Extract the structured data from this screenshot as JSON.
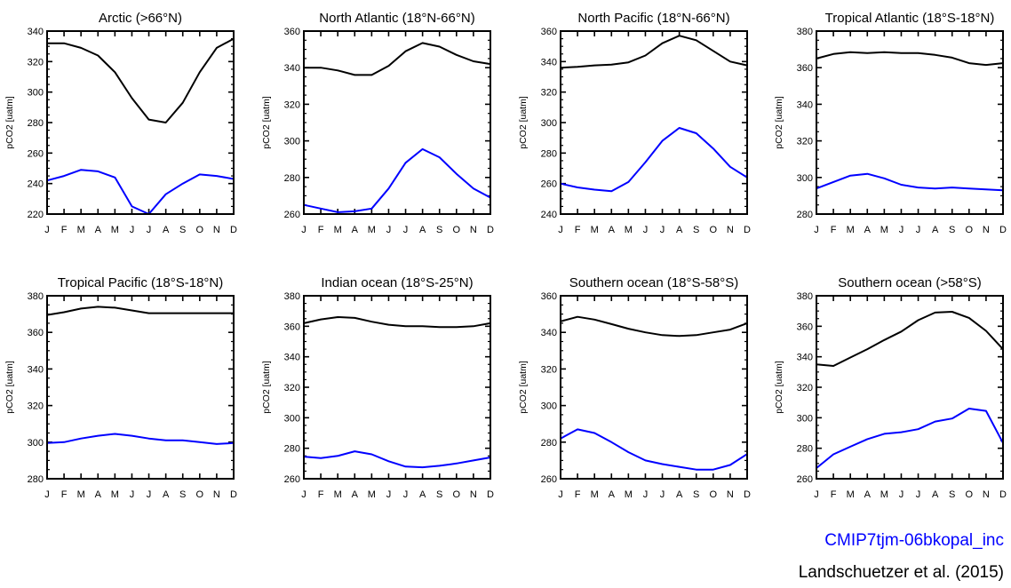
{
  "months": [
    "J",
    "F",
    "M",
    "A",
    "M",
    "J",
    "J",
    "A",
    "S",
    "O",
    "N",
    "D"
  ],
  "legend": {
    "model": {
      "label": "CMIP7tjm-06bkopal_inc",
      "color": "#0000ff"
    },
    "obs": {
      "label": "Landschuetzer et al. (2015)",
      "color": "#000000"
    }
  },
  "chart_data": [
    {
      "type": "line",
      "title": "Arctic (>66°N)",
      "ylabel": "pCO2 [uatm]",
      "ylim": [
        220,
        340
      ],
      "yticks": [
        220,
        240,
        260,
        280,
        300,
        320,
        340
      ],
      "categories": [
        "J",
        "F",
        "M",
        "A",
        "M",
        "J",
        "J",
        "A",
        "S",
        "O",
        "N",
        "D"
      ],
      "series": [
        {
          "color": "#000000",
          "values": [
            332,
            332,
            329,
            324,
            313,
            296,
            282,
            280,
            293,
            313,
            329,
            335
          ]
        },
        {
          "color": "#0000ff",
          "values": [
            242,
            245,
            249,
            248,
            244,
            225,
            220,
            233,
            240,
            246,
            245,
            243
          ]
        }
      ]
    },
    {
      "type": "line",
      "title": "North Atlantic (18°N-66°N)",
      "ylabel": "pCO2 [uatm]",
      "ylim": [
        260,
        360
      ],
      "yticks": [
        260,
        280,
        300,
        320,
        340,
        360
      ],
      "categories": [
        "J",
        "F",
        "M",
        "A",
        "M",
        "J",
        "J",
        "A",
        "S",
        "O",
        "N",
        "D"
      ],
      "series": [
        {
          "color": "#000000",
          "values": [
            340,
            340,
            338.5,
            336,
            336,
            341,
            349,
            353.5,
            351.5,
            347,
            343.5,
            342
          ]
        },
        {
          "color": "#0000ff",
          "values": [
            265,
            263,
            261,
            261.5,
            263,
            274,
            288,
            295.5,
            291,
            282,
            274,
            269
          ]
        }
      ]
    },
    {
      "type": "line",
      "title": "North Pacific (18°N-66°N)",
      "ylabel": "pCO2 [uatm]",
      "ylim": [
        240,
        360
      ],
      "yticks": [
        240,
        260,
        280,
        300,
        320,
        340,
        360
      ],
      "categories": [
        "J",
        "F",
        "M",
        "A",
        "M",
        "J",
        "J",
        "A",
        "S",
        "O",
        "N",
        "D"
      ],
      "series": [
        {
          "color": "#000000",
          "values": [
            336,
            336.5,
            337.5,
            338,
            339.5,
            344,
            352,
            357,
            354,
            347,
            340,
            337.5
          ]
        },
        {
          "color": "#0000ff",
          "values": [
            260,
            257.5,
            256,
            255,
            261,
            274,
            288,
            296.5,
            293,
            283,
            271,
            264
          ]
        }
      ]
    },
    {
      "type": "line",
      "title": "Tropical Atlantic (18°S-18°N)",
      "ylabel": "pCO2 [uatm]",
      "ylim": [
        280,
        380
      ],
      "yticks": [
        280,
        300,
        320,
        340,
        360,
        380
      ],
      "categories": [
        "J",
        "F",
        "M",
        "A",
        "M",
        "J",
        "J",
        "A",
        "S",
        "O",
        "N",
        "D"
      ],
      "series": [
        {
          "color": "#000000",
          "values": [
            365,
            367.5,
            368.5,
            368,
            368.5,
            368,
            368,
            367,
            365.5,
            362.5,
            361.5,
            362.5
          ]
        },
        {
          "color": "#0000ff",
          "values": [
            294,
            297.5,
            301,
            302,
            299.5,
            296,
            294.5,
            294,
            294.5,
            294,
            293.5,
            293
          ]
        }
      ]
    },
    {
      "type": "line",
      "title": "Tropical Pacific (18°S-18°N)",
      "ylabel": "pCO2 [uatm]",
      "ylim": [
        280,
        380
      ],
      "yticks": [
        280,
        300,
        320,
        340,
        360,
        380
      ],
      "categories": [
        "J",
        "F",
        "M",
        "A",
        "M",
        "J",
        "J",
        "A",
        "S",
        "O",
        "N",
        "D"
      ],
      "series": [
        {
          "color": "#000000",
          "values": [
            369.5,
            371,
            373,
            374,
            373.5,
            372,
            370.5,
            370.5,
            370.5,
            370.5,
            370.5,
            370.5
          ]
        },
        {
          "color": "#0000ff",
          "values": [
            299.5,
            300,
            302,
            303.5,
            304.5,
            303.5,
            302,
            301,
            301,
            300,
            299,
            299.5
          ]
        }
      ]
    },
    {
      "type": "line",
      "title": "Indian ocean (18°S-25°N)",
      "ylabel": "pCO2 [uatm]",
      "ylim": [
        260,
        380
      ],
      "yticks": [
        260,
        280,
        300,
        320,
        340,
        360,
        380
      ],
      "categories": [
        "J",
        "F",
        "M",
        "A",
        "M",
        "J",
        "J",
        "A",
        "S",
        "O",
        "N",
        "D"
      ],
      "series": [
        {
          "color": "#000000",
          "values": [
            362,
            364.5,
            366,
            365.5,
            363,
            361,
            360,
            360,
            359.5,
            359.5,
            360,
            362
          ]
        },
        {
          "color": "#0000ff",
          "values": [
            274.5,
            273.5,
            275,
            278,
            276,
            271.5,
            268,
            267.5,
            268.5,
            270,
            272,
            274
          ]
        }
      ]
    },
    {
      "type": "line",
      "title": "Southern ocean (18°S-58°S)",
      "ylabel": "pCO2 [uatm]",
      "ylim": [
        260,
        360
      ],
      "yticks": [
        260,
        280,
        300,
        320,
        340,
        360
      ],
      "categories": [
        "J",
        "F",
        "M",
        "A",
        "M",
        "J",
        "J",
        "A",
        "S",
        "O",
        "N",
        "D"
      ],
      "series": [
        {
          "color": "#000000",
          "values": [
            346,
            348.5,
            347,
            344.5,
            342,
            340,
            338.5,
            338,
            338.5,
            340,
            341.5,
            345
          ]
        },
        {
          "color": "#0000ff",
          "values": [
            282,
            287,
            285,
            280,
            274.5,
            270,
            268,
            266.5,
            265,
            265,
            267.5,
            273.5
          ]
        }
      ]
    },
    {
      "type": "line",
      "title": "Southern ocean (>58°S)",
      "ylabel": "pCO2 [uatm]",
      "ylim": [
        260,
        380
      ],
      "yticks": [
        260,
        280,
        300,
        320,
        340,
        360,
        380
      ],
      "categories": [
        "J",
        "F",
        "M",
        "A",
        "M",
        "J",
        "J",
        "A",
        "S",
        "O",
        "N",
        "D"
      ],
      "series": [
        {
          "color": "#000000",
          "values": [
            335,
            334,
            339.5,
            345,
            351,
            356.5,
            364,
            369,
            369.5,
            365.5,
            357,
            345
          ]
        },
        {
          "color": "#0000ff",
          "values": [
            267,
            276,
            281,
            286,
            289.5,
            290.5,
            292.5,
            297.5,
            299.5,
            306,
            304.5,
            283.5
          ]
        }
      ]
    }
  ]
}
